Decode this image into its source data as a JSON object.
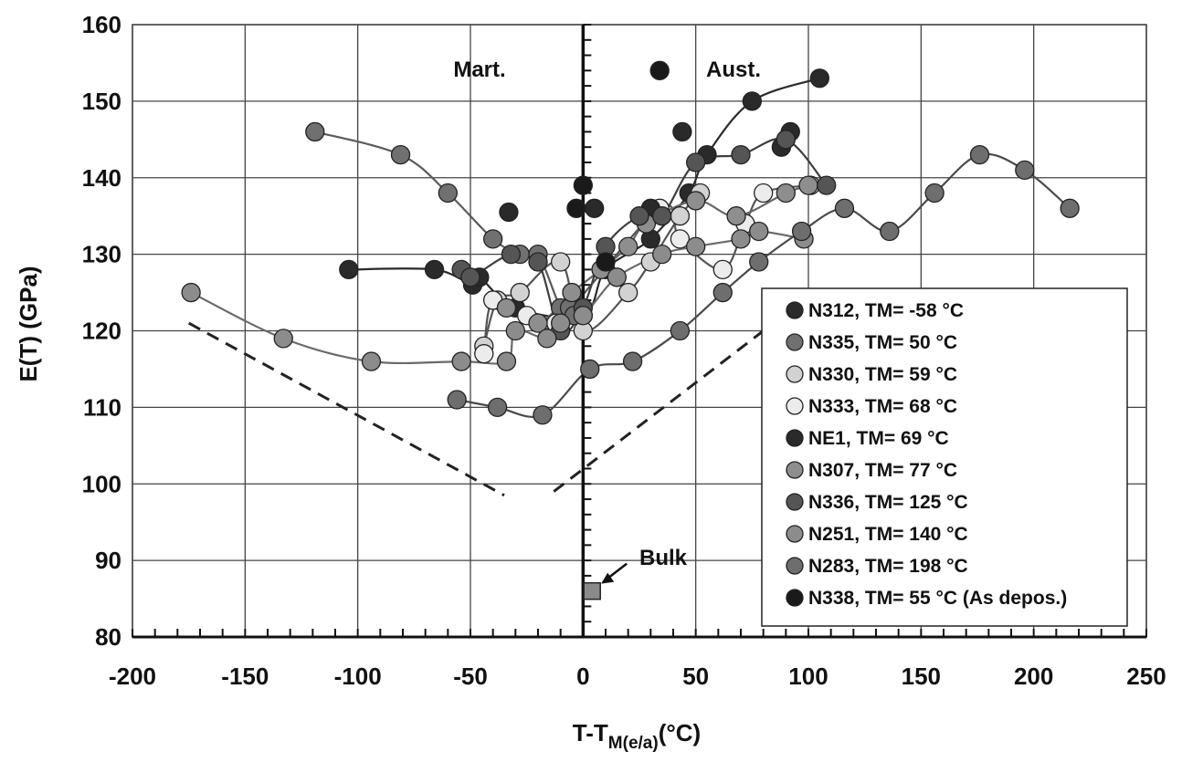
{
  "chart_data": {
    "type": "scatter",
    "title": "",
    "xlabel": {
      "main": "T-T",
      "sub": "M(e/a)",
      "unit": "(°C)"
    },
    "ylabel": "E(T) (GPa)",
    "xlim": [
      -200,
      250
    ],
    "ylim": [
      80,
      160
    ],
    "xticks": [
      "-200",
      "-150",
      "-100",
      "-50",
      "0",
      "50",
      "100",
      "150",
      "200",
      "250"
    ],
    "yticks": [
      "80",
      "90",
      "100",
      "110",
      "120",
      "130",
      "140",
      "150",
      "160"
    ],
    "grid": true,
    "legend_position": "bottom-right",
    "annotations": {
      "mart": "Mart.",
      "aust": "Aust.",
      "bulk": "Bulk"
    },
    "bulk_point": {
      "x": 4,
      "y": 86
    },
    "reference_lines": [
      {
        "style": "dashed",
        "points": [
          [
            -175,
            121
          ],
          [
            -35,
            98.5
          ]
        ]
      },
      {
        "style": "dashed",
        "points": [
          [
            -13,
            99
          ],
          [
            80,
            120
          ]
        ]
      }
    ],
    "series": [
      {
        "name": "N312, TM= -58 °C",
        "color": "#2a2a2a",
        "fill": "#2a2a2a",
        "curve": true,
        "points": [
          [
            -104,
            128
          ],
          [
            -66,
            128
          ],
          [
            -49,
            126
          ],
          [
            -46,
            127
          ],
          [
            -30,
            123
          ],
          [
            0,
            122
          ],
          [
            10,
            128
          ],
          [
            30,
            132
          ],
          [
            47,
            138
          ],
          [
            55,
            143
          ],
          [
            75,
            150
          ],
          [
            105,
            153
          ]
        ]
      },
      {
        "name": "N335, TM= 50 °C",
        "color": "#5a5a5a",
        "fill": "#707070",
        "curve": true,
        "points": [
          [
            -119,
            146
          ],
          [
            -81,
            143
          ],
          [
            -60,
            138
          ],
          [
            -40,
            132
          ],
          [
            -28,
            130
          ],
          [
            -20,
            130
          ],
          [
            -10,
            123
          ],
          [
            -6,
            123
          ],
          [
            -4,
            122
          ]
        ]
      },
      {
        "name": "N330, TM= 59 °C",
        "color": "#555555",
        "fill": "#d2d2d2",
        "curve": true,
        "points": [
          [
            -44,
            118
          ],
          [
            -38,
            124
          ],
          [
            -28,
            125
          ],
          [
            -10,
            129
          ],
          [
            0,
            120
          ],
          [
            20,
            125
          ],
          [
            30,
            129
          ],
          [
            43,
            135
          ],
          [
            52,
            138
          ]
        ]
      },
      {
        "name": "N333, TM= 68 °C",
        "color": "#555555",
        "fill": "#ececec",
        "curve": true,
        "points": [
          [
            -44,
            117
          ],
          [
            -40,
            124
          ],
          [
            -25,
            122
          ],
          [
            -12,
            121
          ],
          [
            34,
            136
          ],
          [
            43,
            132
          ],
          [
            62,
            128
          ],
          [
            72,
            134
          ],
          [
            80,
            138
          ],
          [
            101,
            139
          ]
        ]
      },
      {
        "name": "NE1, TM= 69 °C",
        "color": "#222222",
        "fill": "#2a2a2a",
        "curve": false,
        "points": [
          [
            -33,
            135.5
          ],
          [
            5,
            136
          ],
          [
            30,
            136
          ],
          [
            44,
            146
          ],
          [
            88,
            144
          ],
          [
            92,
            146
          ]
        ]
      },
      {
        "name": "N307, TM= 77 °C",
        "color": "#666666",
        "fill": "#8e8e8e",
        "curve": true,
        "points": [
          [
            -34,
            123
          ],
          [
            -20,
            121
          ],
          [
            -5,
            125
          ],
          [
            8,
            128
          ],
          [
            20,
            131
          ],
          [
            28,
            134
          ],
          [
            50,
            137
          ],
          [
            68,
            135
          ],
          [
            90,
            138
          ],
          [
            100,
            139
          ]
        ]
      },
      {
        "name": "N336, TM= 125 °C",
        "color": "#3e3e3e",
        "fill": "#555555",
        "curve": true,
        "points": [
          [
            -54,
            128
          ],
          [
            -50,
            127
          ],
          [
            -32,
            130
          ],
          [
            -20,
            129
          ],
          [
            -10,
            120
          ],
          [
            0,
            123
          ],
          [
            10,
            131
          ],
          [
            25,
            135
          ],
          [
            35,
            135
          ],
          [
            50,
            142
          ],
          [
            70,
            143
          ],
          [
            90,
            145
          ],
          [
            108,
            139
          ]
        ]
      },
      {
        "name": "N251, TM= 140 °C",
        "color": "#6a6a6a",
        "fill": "#8c8c8c",
        "curve": true,
        "points": [
          [
            -174,
            125
          ],
          [
            -133,
            119
          ],
          [
            -94,
            116
          ],
          [
            -54,
            116
          ],
          [
            -34,
            116
          ],
          [
            -30,
            120
          ],
          [
            -16,
            119
          ],
          [
            -10,
            121
          ],
          [
            0,
            122
          ],
          [
            15,
            127
          ],
          [
            35,
            130
          ],
          [
            50,
            131
          ],
          [
            70,
            132
          ],
          [
            78,
            133
          ],
          [
            98,
            132
          ]
        ]
      },
      {
        "name": "N283, TM= 198 °C",
        "color": "#4a4a4a",
        "fill": "#6e6e6e",
        "curve": true,
        "points": [
          [
            -56,
            111
          ],
          [
            -38,
            110
          ],
          [
            -18,
            109
          ],
          [
            3,
            115
          ],
          [
            22,
            116
          ],
          [
            43,
            120
          ],
          [
            62,
            125
          ],
          [
            78,
            129
          ],
          [
            97,
            133
          ],
          [
            116,
            136
          ],
          [
            136,
            133
          ],
          [
            156,
            138
          ],
          [
            176,
            143
          ],
          [
            196,
            141
          ],
          [
            216,
            136
          ]
        ]
      },
      {
        "name": "N338, TM= 55 °C (As depos.)",
        "color": "#1a1a1a",
        "fill": "#1a1a1a",
        "curve": false,
        "points": [
          [
            0,
            139
          ],
          [
            10,
            129
          ],
          [
            -3,
            136
          ],
          [
            34,
            154
          ]
        ]
      }
    ]
  }
}
